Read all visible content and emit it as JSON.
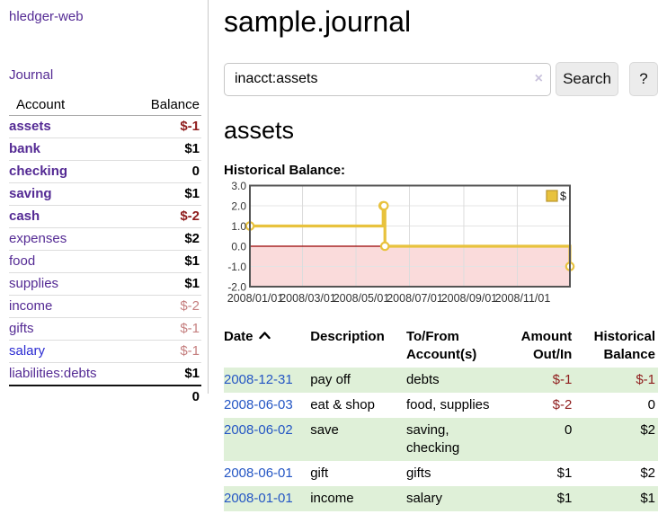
{
  "colors": {
    "link_purple": "#542a94",
    "link_blue": "#2b2bd2",
    "date_blue": "#2456c4",
    "neg_dark": "#8f1d1d",
    "neg_light": "#c57f7f",
    "row_green": "#dff0d8",
    "chart_line": "#e8c23d",
    "chart_neg_bg": "#fadbdb",
    "zero_line": "#990000"
  },
  "sidebar": {
    "brand": "hledger-web",
    "journal_link": "Journal",
    "accounts": {
      "header_account": "Account",
      "header_balance": "Balance",
      "rows": [
        {
          "name": "assets",
          "level": 1,
          "bold": true,
          "link": "purple",
          "balance": "$-1",
          "bstyle": "negd"
        },
        {
          "name": "bank",
          "level": 2,
          "bold": true,
          "link": "purple",
          "balance": "$1",
          "bstyle": "pos"
        },
        {
          "name": "checking",
          "level": 3,
          "bold": true,
          "link": "purple",
          "balance": "0",
          "bstyle": "pos"
        },
        {
          "name": "saving",
          "level": 3,
          "bold": true,
          "link": "purple",
          "balance": "$1",
          "bstyle": "pos"
        },
        {
          "name": "cash",
          "level": 2,
          "bold": true,
          "link": "purple",
          "balance": "$-2",
          "bstyle": "negd"
        },
        {
          "name": "expenses",
          "level": 1,
          "bold": false,
          "link": "purple",
          "balance": "$2",
          "bstyle": "pos"
        },
        {
          "name": "food",
          "level": 2,
          "bold": false,
          "link": "purple",
          "balance": "$1",
          "bstyle": "pos"
        },
        {
          "name": "supplies",
          "level": 2,
          "bold": false,
          "link": "purple",
          "balance": "$1",
          "bstyle": "pos"
        },
        {
          "name": "income",
          "level": 1,
          "bold": false,
          "link": "purple",
          "balance": "$-2",
          "bstyle": "negl"
        },
        {
          "name": "gifts",
          "level": 2,
          "bold": false,
          "link": "purple",
          "balance": "$-1",
          "bstyle": "negl"
        },
        {
          "name": "salary",
          "level": 2,
          "bold": false,
          "link": "blue",
          "balance": "$-1",
          "bstyle": "negl"
        },
        {
          "name": "liabilities:debts",
          "level": 1,
          "bold": false,
          "link": "purple",
          "balance": "$1",
          "bstyle": "pos"
        }
      ],
      "total": "0"
    }
  },
  "main": {
    "title": "sample.journal",
    "search": {
      "value": "inacct:assets",
      "clear_icon": "×",
      "search_button": "Search",
      "help_button": "?"
    },
    "account_heading": "assets",
    "chart_heading": "Historical Balance:"
  },
  "chart_data": {
    "type": "line",
    "step": true,
    "title": "Historical Balance:",
    "legend": "$",
    "legend_position": "top-right",
    "grid": true,
    "ylim": [
      -2.0,
      3.0
    ],
    "yticks": [
      "3.0",
      "2.0",
      "1.0",
      "0.0",
      "-1.0",
      "-2.0"
    ],
    "ytick_values": [
      3,
      2,
      1,
      0,
      -1,
      -2
    ],
    "xtick_labels": [
      "2008/01/01",
      "2008/03/01",
      "2008/05/01",
      "2008/07/01",
      "2008/09/01",
      "2008/11/01"
    ],
    "xtick_days": [
      0,
      60,
      121,
      182,
      244,
      305
    ],
    "x_range_days": [
      0,
      365
    ],
    "series": [
      {
        "name": "$",
        "points": [
          {
            "date": "2008-01-01",
            "day": 0,
            "balance": 1
          },
          {
            "date": "2008-06-01",
            "day": 152,
            "balance": 2
          },
          {
            "date": "2008-06-02",
            "day": 153,
            "balance": 2
          },
          {
            "date": "2008-06-03",
            "day": 154,
            "balance": 0
          },
          {
            "date": "2008-12-31",
            "day": 365,
            "balance": -1
          }
        ]
      }
    ]
  },
  "register": {
    "headers": {
      "date": "Date",
      "description": "Description",
      "accounts": "To/From\nAccount(s)",
      "amount": "Amount\nOut/In",
      "balance": "Historical\nBalance"
    },
    "rows": [
      {
        "date": "2008-12-31",
        "description": "pay off",
        "accounts": "debts",
        "amount": "$-1",
        "amount_neg": true,
        "balance": "$-1",
        "balance_neg": true,
        "green": true
      },
      {
        "date": "2008-06-03",
        "description": "eat & shop",
        "accounts": "food, supplies",
        "amount": "$-2",
        "amount_neg": true,
        "balance": "0",
        "balance_neg": false,
        "green": false
      },
      {
        "date": "2008-06-02",
        "description": "save",
        "accounts": "saving, checking",
        "amount": "0",
        "amount_neg": false,
        "balance": "$2",
        "balance_neg": false,
        "green": true
      },
      {
        "date": "2008-06-01",
        "description": "gift",
        "accounts": "gifts",
        "amount": "$1",
        "amount_neg": false,
        "balance": "$2",
        "balance_neg": false,
        "green": false
      },
      {
        "date": "2008-01-01",
        "description": "income",
        "accounts": "salary",
        "amount": "$1",
        "amount_neg": false,
        "balance": "$1",
        "balance_neg": false,
        "green": true
      }
    ]
  }
}
